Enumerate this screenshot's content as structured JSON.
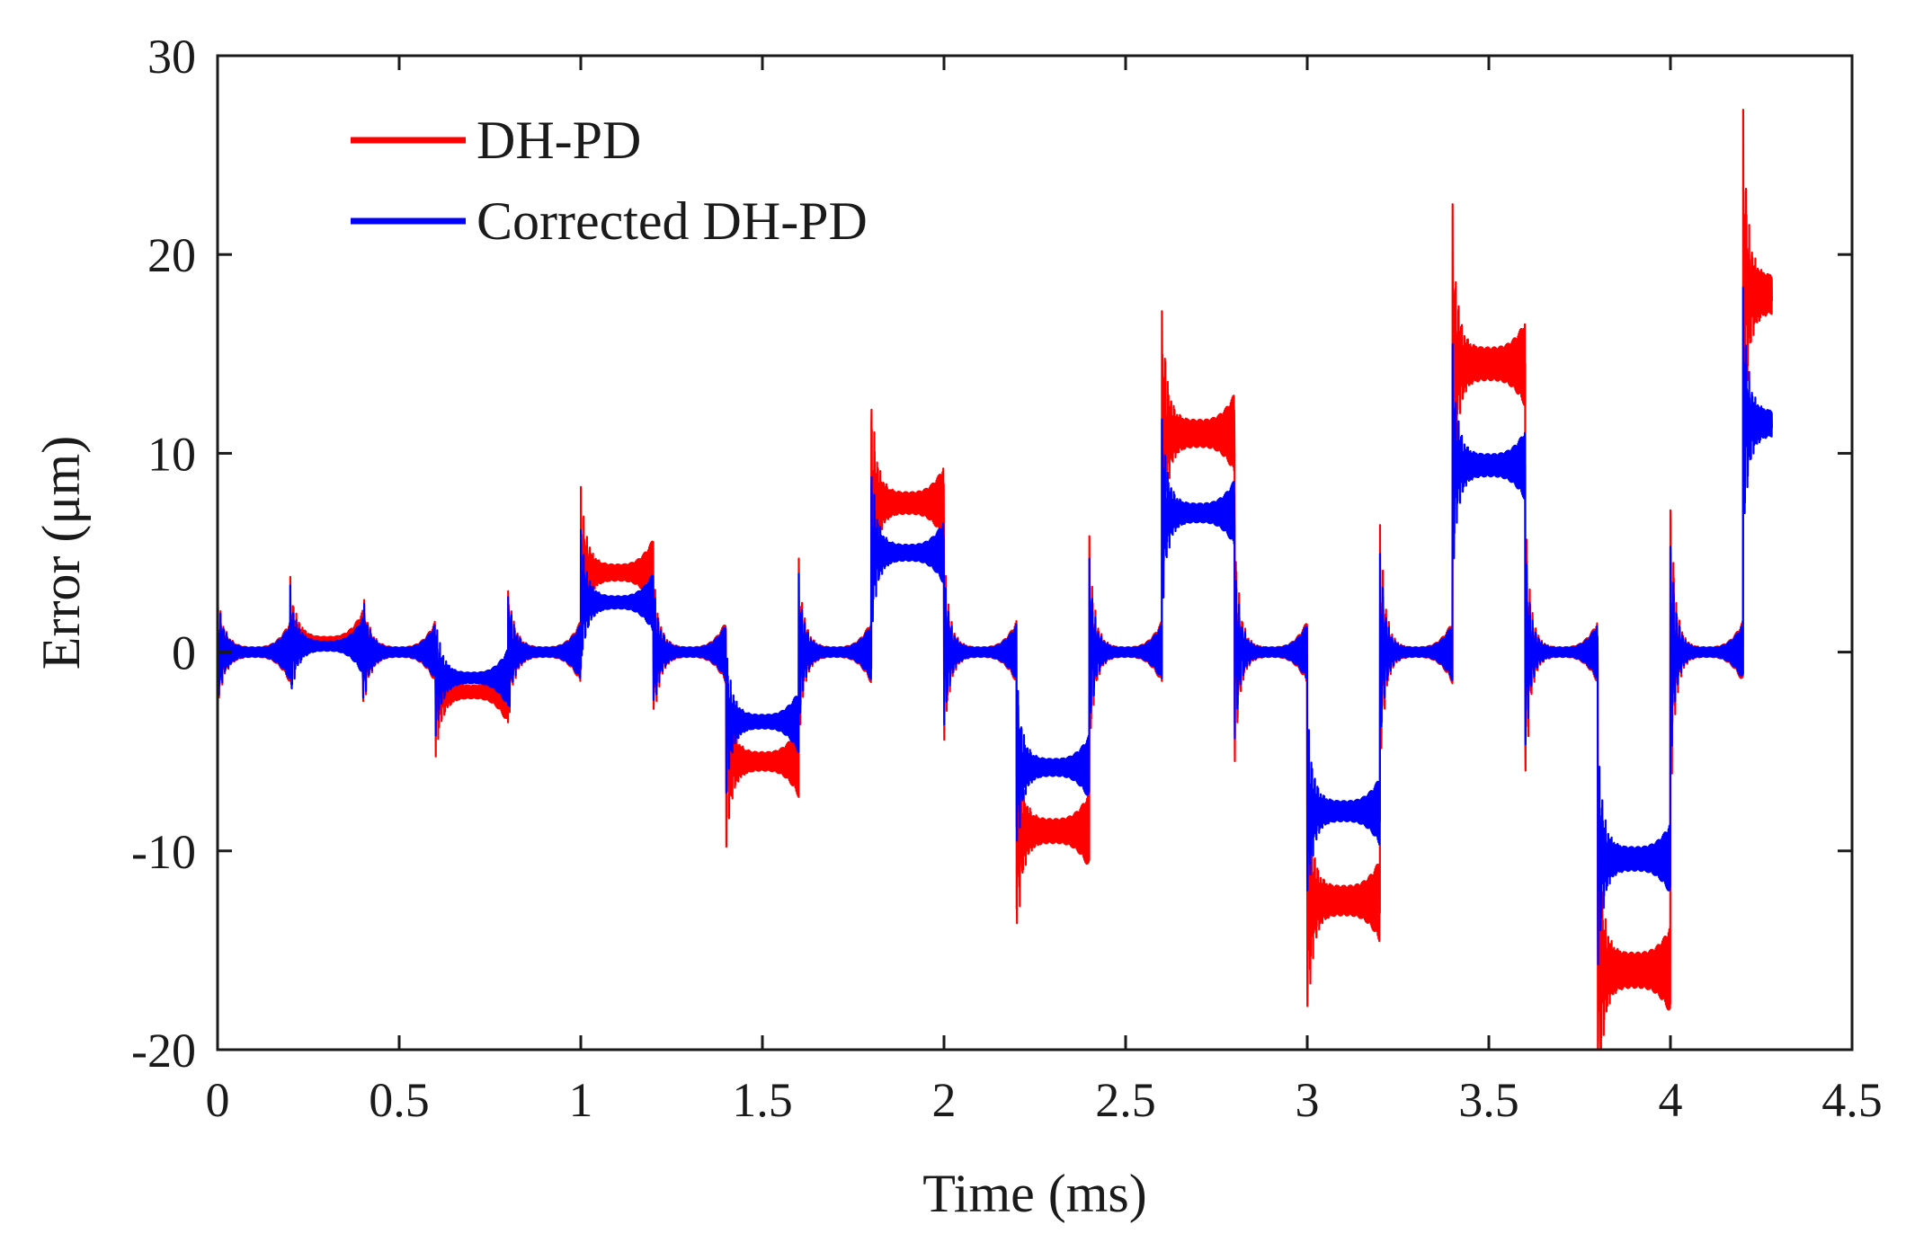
{
  "chart_data": {
    "type": "line",
    "title": "",
    "xlabel": "Time (ms)",
    "ylabel": "Error (μm)",
    "xlim": [
      0,
      4.5
    ],
    "ylim": [
      -20,
      30
    ],
    "xticks": [
      0,
      0.5,
      1,
      1.5,
      2,
      2.5,
      3,
      3.5,
      4,
      4.5
    ],
    "xtick_labels": [
      "0",
      "0.5",
      "1",
      "1.5",
      "2",
      "2.5",
      "3",
      "3.5",
      "4",
      "4.5"
    ],
    "yticks": [
      -20,
      -10,
      0,
      10,
      20,
      30
    ],
    "ytick_labels": [
      "-20",
      "-10",
      "0",
      "10",
      "20",
      "30"
    ],
    "grid": false,
    "legend_position": "top-left",
    "step_duration_ms": 0.2,
    "x_end": 4.28,
    "series": [
      {
        "name": "DH-PD",
        "color": "#ff0000",
        "plateau_levels": [
          0,
          0.5,
          0,
          -2,
          0,
          4,
          0,
          -5.5,
          0,
          7.5,
          0,
          -9,
          0,
          11,
          0,
          -12.5,
          0,
          14.5,
          0,
          -16,
          0,
          18
        ]
      },
      {
        "name": "Corrected DH-PD",
        "color": "#0000ff",
        "plateau_levels": [
          0,
          0.3,
          0,
          -1.3,
          0,
          2.5,
          0,
          -3.5,
          0,
          5,
          0,
          -5.8,
          0,
          7,
          0,
          -8,
          0,
          9.4,
          0,
          -10.4,
          0,
          11.5
        ]
      }
    ]
  }
}
